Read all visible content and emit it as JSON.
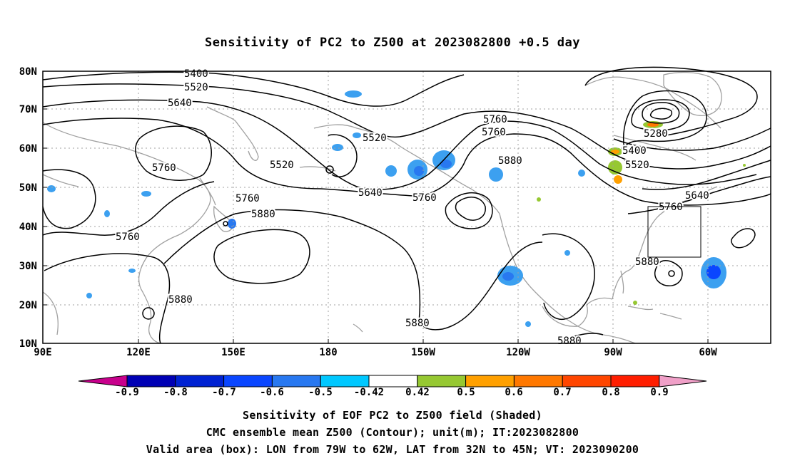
{
  "title": "Sensitivity of PC2 to Z500 at 2023082800 +0.5 day",
  "axes": {
    "lat_labels": [
      "80N",
      "70N",
      "60N",
      "50N",
      "40N",
      "30N",
      "20N",
      "10N"
    ],
    "lon_labels": [
      "90E",
      "120E",
      "150E",
      "180",
      "150W",
      "120W",
      "90W",
      "60W"
    ]
  },
  "contour_labels": [
    "5400",
    "5520",
    "5640",
    "5520",
    "5520",
    "5640",
    "5760",
    "5760",
    "5760",
    "5880",
    "5760",
    "5880",
    "5880",
    "5760",
    "5880",
    "5760",
    "5280",
    "5400",
    "5520",
    "5640",
    "5760",
    "5880",
    "5880"
  ],
  "validation_box": {
    "lon_from": "79W",
    "lon_to": "62W",
    "lat_from": "32N",
    "lat_to": "45N"
  },
  "colorbar": {
    "labels": [
      "-0.9",
      "-0.8",
      "-0.7",
      "-0.6",
      "-0.5",
      "-0.42",
      "0.42",
      "0.5",
      "0.6",
      "0.7",
      "0.8",
      "0.9"
    ],
    "colors": [
      "#c8008c",
      "#0000b4",
      "#0022d2",
      "#0a46ff",
      "#2878f0",
      "#3ca0f0",
      "#00c8ff",
      "#ffffff",
      "#96c832",
      "#ffa000",
      "#ff7800",
      "#ff4600",
      "#ff1e00",
      "#f0a0c8"
    ]
  },
  "captions": {
    "line1": "Sensitivity of EOF PC2 to Z500 field (Shaded)",
    "line2": "CMC ensemble mean Z500 (Contour); unit(m); IT:2023082800",
    "line3": "Valid area (box): LON from 79W to 62W, LAT from 32N to 45N; VT: 2023090200"
  },
  "colors": {
    "coastline": "#a0a0a0",
    "contour": "#000000",
    "grid": "#a0a0a0"
  }
}
